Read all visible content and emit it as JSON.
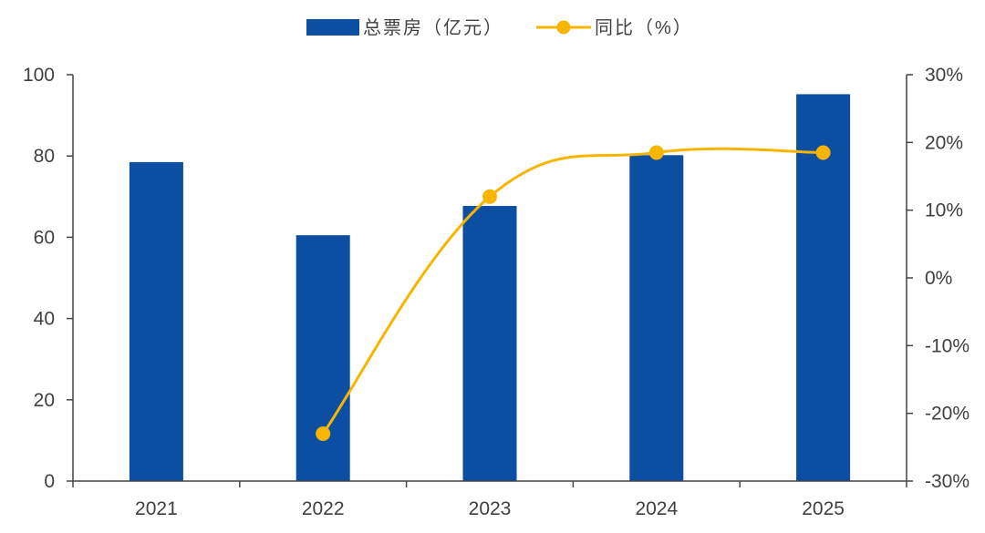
{
  "chart_data": {
    "type": "bar+line",
    "categories": [
      "2021",
      "2022",
      "2023",
      "2024",
      "2025"
    ],
    "series": [
      {
        "name": "总票房（亿元）",
        "type": "bar",
        "axis": "left",
        "color": "#0B4EA2",
        "values": [
          78.5,
          60.5,
          67.7,
          80.2,
          95.2
        ]
      },
      {
        "name": "同比（%）",
        "type": "line",
        "axis": "right",
        "color": "#F7B500",
        "values": [
          null,
          -23,
          12,
          18.5,
          18.5
        ]
      }
    ],
    "y_left": {
      "min": 0,
      "max": 100,
      "ticks": [
        0,
        20,
        40,
        60,
        80,
        100
      ],
      "tick_labels": [
        "0",
        "20",
        "40",
        "60",
        "80",
        "100"
      ]
    },
    "y_right": {
      "min": -30,
      "max": 30,
      "ticks": [
        -30,
        -20,
        -10,
        0,
        10,
        20,
        30
      ],
      "tick_labels": [
        "-30%",
        "-20%",
        "-10%",
        "0%",
        "10%",
        "20%",
        "30%"
      ]
    },
    "legend_position": "top-center",
    "grid": false
  }
}
